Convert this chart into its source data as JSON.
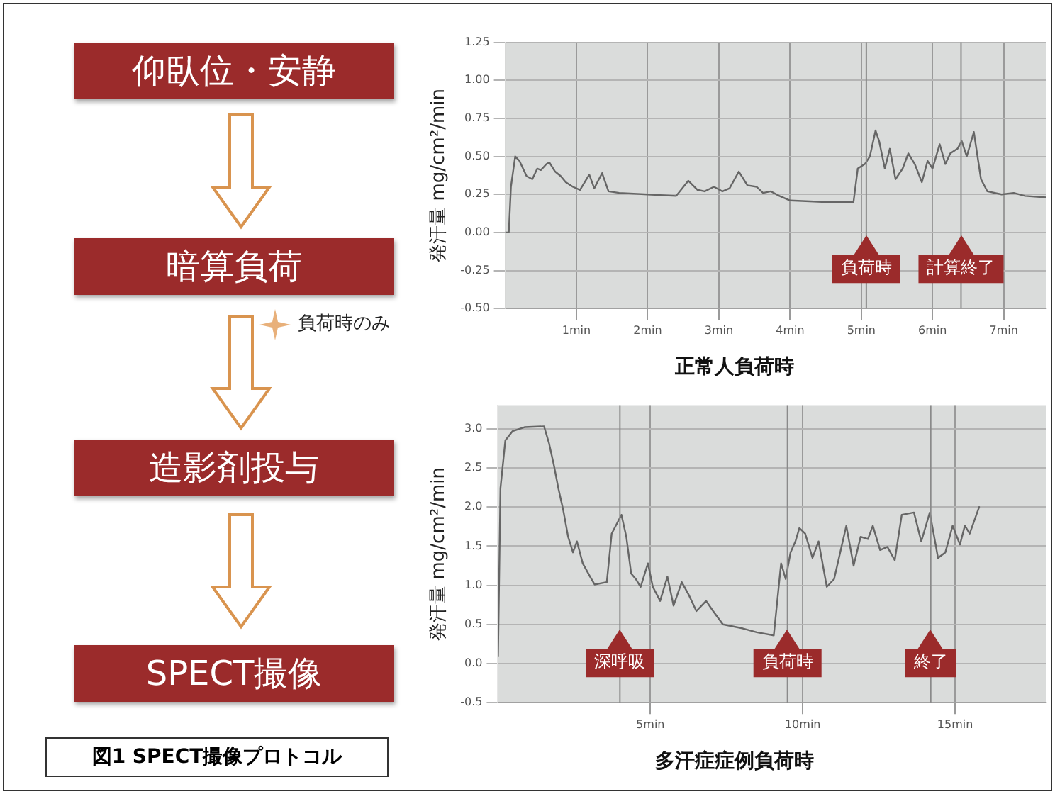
{
  "chart_data": [
    {
      "type": "other",
      "categories": [
        "仰臥位・安静",
        "暗算負荷",
        "造影剤投与",
        "SPECT撮像"
      ],
      "annotations": [
        "負荷時のみ",
        "図1 SPECT撮像プロトコル"
      ]
    },
    {
      "type": "line",
      "title": "正常人負荷時",
      "ylabel": "発汗量 mg/cm²/min",
      "grid": true,
      "legend": false,
      "xlim": [
        0,
        7.6
      ],
      "xticks": [
        {
          "value": 1,
          "label": "1min"
        },
        {
          "value": 2,
          "label": "2min"
        },
        {
          "value": 3,
          "label": "3min"
        },
        {
          "value": 4,
          "label": "4min"
        },
        {
          "value": 5,
          "label": "5min"
        },
        {
          "value": 6,
          "label": "6min"
        },
        {
          "value": 7,
          "label": "7min"
        }
      ],
      "ylim": [
        -0.5,
        1.25
      ],
      "yticks": [
        {
          "value": -0.5,
          "label": "-0.50"
        },
        {
          "value": -0.25,
          "label": "-0.25"
        },
        {
          "value": 0,
          "label": "0.00"
        },
        {
          "value": 0.25,
          "label": "0.25"
        },
        {
          "value": 0.5,
          "label": "0.50"
        },
        {
          "value": 0.75,
          "label": "0.75"
        },
        {
          "value": 1,
          "label": "1.00"
        },
        {
          "value": 1.25,
          "label": "1.25"
        }
      ],
      "ref_lines": [
        {
          "axis": "x",
          "value": 5.07,
          "label": "負荷時"
        },
        {
          "axis": "x",
          "value": 6.4,
          "label": "計算終了"
        }
      ],
      "series": [
        {
          "color": "#666666",
          "x": [
            0,
            0.05,
            0.08,
            0.14,
            0.2,
            0.3,
            0.38,
            0.45,
            0.5,
            0.58,
            0.62,
            0.7,
            0.78,
            0.85,
            0.95,
            1.05,
            1.18,
            1.25,
            1.36,
            1.45,
            1.6,
            2.0,
            2.4,
            2.57,
            2.7,
            2.8,
            2.93,
            3.05,
            3.15,
            3.28,
            3.4,
            3.53,
            3.62,
            3.73,
            3.85,
            4.0,
            4.5,
            4.89,
            4.95,
            5.05,
            5.12,
            5.2,
            5.25,
            5.33,
            5.4,
            5.48,
            5.58,
            5.66,
            5.75,
            5.85,
            5.93,
            6.0,
            6.1,
            6.18,
            6.25,
            6.35,
            6.41,
            6.48,
            6.58,
            6.68,
            6.77,
            6.97,
            7.14,
            7.3,
            7.6
          ],
          "values": [
            0,
            0,
            0.3,
            0.5,
            0.47,
            0.37,
            0.35,
            0.42,
            0.41,
            0.45,
            0.46,
            0.4,
            0.37,
            0.33,
            0.3,
            0.28,
            0.38,
            0.29,
            0.39,
            0.27,
            0.26,
            0.25,
            0.24,
            0.34,
            0.28,
            0.27,
            0.3,
            0.27,
            0.29,
            0.4,
            0.31,
            0.3,
            0.26,
            0.27,
            0.24,
            0.21,
            0.2,
            0.2,
            0.42,
            0.45,
            0.5,
            0.67,
            0.6,
            0.42,
            0.55,
            0.35,
            0.42,
            0.52,
            0.45,
            0.33,
            0.47,
            0.42,
            0.58,
            0.45,
            0.52,
            0.55,
            0.6,
            0.5,
            0.66,
            0.35,
            0.27,
            0.25,
            0.26,
            0.24,
            0.23
          ]
        }
      ]
    },
    {
      "type": "line",
      "title": "多汗症症例負荷時",
      "ylabel": "発汗量 mg/cm²/min",
      "grid": true,
      "legend": false,
      "xlim": [
        0,
        18
      ],
      "xticks": [
        {
          "value": 5,
          "label": "5min"
        },
        {
          "value": 10,
          "label": "10min"
        },
        {
          "value": 15,
          "label": "15min"
        }
      ],
      "ylim": [
        -0.5,
        3.3
      ],
      "yticks": [
        {
          "value": -0.5,
          "label": "-0.5"
        },
        {
          "value": 0,
          "label": "0.0"
        },
        {
          "value": 0.5,
          "label": "0.5"
        },
        {
          "value": 1,
          "label": "1.0"
        },
        {
          "value": 1.5,
          "label": "1.5"
        },
        {
          "value": 2,
          "label": "2.0"
        },
        {
          "value": 2.5,
          "label": "2.5"
        },
        {
          "value": 3,
          "label": "3.0"
        }
      ],
      "ref_lines": [
        {
          "axis": "x",
          "value": 4.0,
          "label": "深呼吸"
        },
        {
          "axis": "x",
          "value": 9.5,
          "label": "負荷時"
        },
        {
          "axis": "x",
          "value": 14.2,
          "label": "終了"
        }
      ],
      "series": [
        {
          "color": "#666666",
          "x": [
            0,
            0.08,
            0.24,
            0.48,
            0.87,
            1.51,
            1.67,
            1.83,
            1.98,
            2.14,
            2.3,
            2.46,
            2.59,
            2.78,
            3.02,
            3.17,
            3.57,
            3.73,
            4.05,
            4.21,
            4.37,
            4.52,
            4.68,
            4.92,
            5.08,
            5.32,
            5.56,
            5.76,
            6.03,
            6.27,
            6.51,
            6.83,
            7.06,
            7.38,
            8.02,
            8.49,
            9.05,
            9.29,
            9.44,
            9.6,
            9.76,
            9.89,
            10.08,
            10.32,
            10.52,
            10.79,
            11.03,
            11.43,
            11.67,
            11.9,
            12.14,
            12.3,
            12.54,
            12.78,
            13.02,
            13.25,
            13.65,
            13.89,
            14.17,
            14.44,
            14.68,
            14.92,
            15.16,
            15.32,
            15.48,
            15.79
          ],
          "values": [
            0.09,
            2.24,
            2.85,
            2.97,
            3.02,
            3.03,
            2.82,
            2.54,
            2.24,
            1.96,
            1.62,
            1.42,
            1.56,
            1.28,
            1.11,
            1.01,
            1.04,
            1.66,
            1.9,
            1.62,
            1.15,
            1.08,
            0.98,
            1.28,
            0.98,
            0.8,
            1.11,
            0.74,
            1.04,
            0.87,
            0.67,
            0.8,
            0.67,
            0.5,
            0.45,
            0.4,
            0.36,
            1.28,
            1.08,
            1.42,
            1.56,
            1.73,
            1.66,
            1.35,
            1.56,
            0.98,
            1.08,
            1.76,
            1.25,
            1.62,
            1.59,
            1.76,
            1.45,
            1.49,
            1.32,
            1.9,
            1.93,
            1.56,
            1.93,
            1.35,
            1.42,
            1.76,
            1.52,
            1.76,
            1.66,
            2.0
          ]
        }
      ]
    }
  ]
}
